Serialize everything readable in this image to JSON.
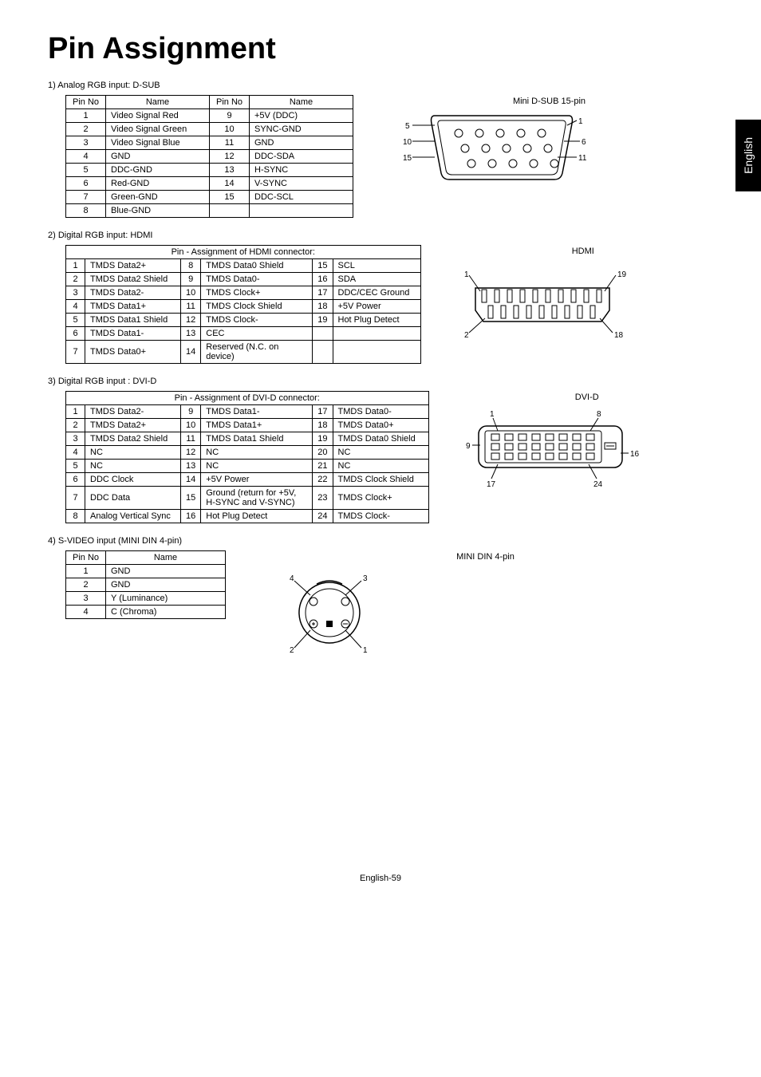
{
  "title": "Pin Assignment",
  "lang_tab": "English",
  "footer": "English-59",
  "section1": {
    "label": "1)  Analog RGB input: D-SUB",
    "caption": "Mini D-SUB 15-pin",
    "headers": {
      "pin": "Pin No",
      "name": "Name"
    },
    "rows": [
      [
        "1",
        "Video Signal Red",
        "9",
        "+5V (DDC)"
      ],
      [
        "2",
        "Video Signal Green",
        "10",
        "SYNC-GND"
      ],
      [
        "3",
        "Video Signal Blue",
        "11",
        "GND"
      ],
      [
        "4",
        "GND",
        "12",
        "DDC-SDA"
      ],
      [
        "5",
        "DDC-GND",
        "13",
        "H-SYNC"
      ],
      [
        "6",
        "Red-GND",
        "14",
        "V-SYNC"
      ],
      [
        "7",
        "Green-GND",
        "15",
        "DDC-SCL"
      ],
      [
        "8",
        "Blue-GND",
        "",
        ""
      ]
    ],
    "diagram_labels": [
      "5",
      "10",
      "15",
      "1",
      "6",
      "11"
    ]
  },
  "section2": {
    "label": "2)  Digital RGB input: HDMI",
    "caption": "HDMI",
    "header": "Pin - Assignment of HDMI connector:",
    "rows": [
      [
        "1",
        "TMDS Data2+",
        "8",
        "TMDS Data0 Shield",
        "15",
        "SCL"
      ],
      [
        "2",
        "TMDS Data2 Shield",
        "9",
        "TMDS Data0-",
        "16",
        "SDA"
      ],
      [
        "3",
        "TMDS Data2-",
        "10",
        "TMDS Clock+",
        "17",
        "DDC/CEC Ground"
      ],
      [
        "4",
        "TMDS Data1+",
        "11",
        "TMDS Clock Shield",
        "18",
        "+5V Power"
      ],
      [
        "5",
        "TMDS Data1 Shield",
        "12",
        "TMDS Clock-",
        "19",
        "Hot Plug Detect"
      ],
      [
        "6",
        "TMDS Data1-",
        "13",
        "CEC",
        "",
        ""
      ],
      [
        "7",
        "TMDS Data0+",
        "14",
        "Reserved (N.C. on device)",
        "",
        ""
      ]
    ],
    "diagram_labels": [
      "1",
      "19",
      "2",
      "18"
    ]
  },
  "section3": {
    "label": "3)  Digital RGB input : DVI-D",
    "caption": "DVI-D",
    "header": "Pin - Assignment of DVI-D connector:",
    "rows": [
      [
        "1",
        "TMDS Data2-",
        "9",
        "TMDS Data1-",
        "17",
        "TMDS Data0-"
      ],
      [
        "2",
        "TMDS Data2+",
        "10",
        "TMDS Data1+",
        "18",
        "TMDS Data0+"
      ],
      [
        "3",
        "TMDS Data2 Shield",
        "11",
        "TMDS Data1 Shield",
        "19",
        "TMDS Data0 Shield"
      ],
      [
        "4",
        "NC",
        "12",
        "NC",
        "20",
        "NC"
      ],
      [
        "5",
        "NC",
        "13",
        "NC",
        "21",
        "NC"
      ],
      [
        "6",
        "DDC Clock",
        "14",
        "+5V Power",
        "22",
        "TMDS Clock Shield"
      ],
      [
        "7",
        "DDC Data",
        "15",
        "Ground (return for +5V, H-SYNC and V-SYNC)",
        "23",
        "TMDS Clock+"
      ],
      [
        "8",
        "Analog Vertical Sync",
        "16",
        "Hot Plug Detect",
        "24",
        "TMDS Clock-"
      ]
    ],
    "diagram_labels": [
      "1",
      "8",
      "9",
      "16",
      "17",
      "24"
    ]
  },
  "section4": {
    "label": "4)  S-VIDEO input (MINI DIN 4-pin)",
    "caption": "MINI DIN 4-pin",
    "headers": {
      "pin": "Pin No",
      "name": "Name"
    },
    "rows": [
      [
        "1",
        "GND"
      ],
      [
        "2",
        "GND"
      ],
      [
        "3",
        "Y (Luminance)"
      ],
      [
        "4",
        "C (Chroma)"
      ]
    ],
    "diagram_labels": [
      "4",
      "3",
      "2",
      "1"
    ]
  }
}
